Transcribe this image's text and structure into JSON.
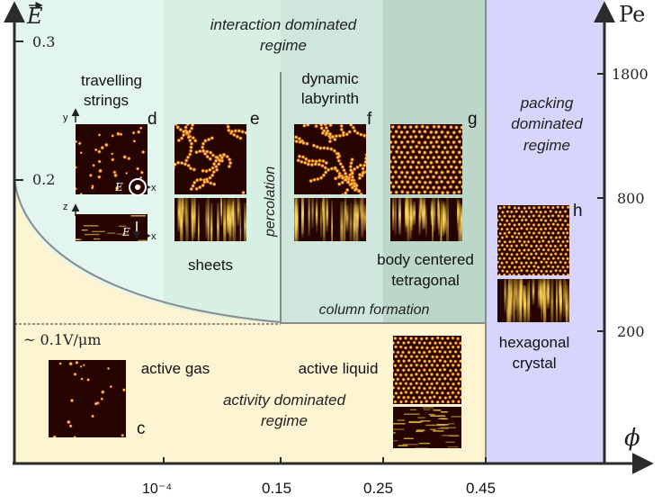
{
  "axes": {
    "y_label": "E",
    "y_ticks": [
      "0.3",
      "0.2"
    ],
    "threshold_label": "~ 0.1V/μm",
    "right_label": "Pe",
    "right_ticks": [
      "1800",
      "800",
      "200"
    ],
    "x_label": "ϕ",
    "x_ticks": [
      "10⁻⁴",
      "0.15",
      "0.25",
      "0.45"
    ]
  },
  "regions": {
    "interaction": [
      "interaction dominated",
      "regime"
    ],
    "packing": [
      "packing",
      "dominated",
      "regime"
    ],
    "activity": [
      "activity dominated",
      "regime"
    ],
    "percolation": "percolation",
    "column_formation": "column formation"
  },
  "phases": {
    "travelling_strings": [
      "travelling",
      "strings"
    ],
    "sheets": "sheets",
    "dynamic_labyrinth": [
      "dynamic",
      "labyrinth"
    ],
    "bct": [
      "body centered",
      "tetragonal"
    ],
    "hexagonal": [
      "hexagonal",
      "crystal"
    ],
    "active_gas": "active gas",
    "active_liquid": "active liquid"
  },
  "panel_letters": [
    "c",
    "d",
    "e",
    "f",
    "g",
    "h"
  ],
  "inset_axes": {
    "y": "y",
    "x": "x",
    "z": "z",
    "field": "E"
  },
  "colors": {
    "interaction_bg": "#e2f6ef",
    "interaction_bg_dark": "#cfe6dc",
    "interaction_bg_darker": "#bcd6c9",
    "activity_bg": "#fdf5d2",
    "packing_bg": "#d7d5fb",
    "axis": "#2b2b2b",
    "curve": "#8a8a8a",
    "micrograph_dark": "#250402",
    "micrograph_bright": "#ffd24a"
  }
}
